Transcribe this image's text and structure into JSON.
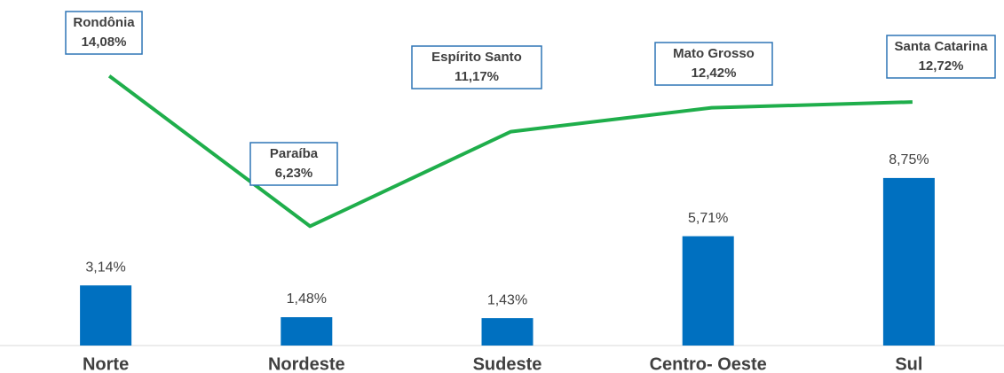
{
  "chart_data": {
    "type": "bar-line",
    "categories": [
      "Norte",
      "Nordeste",
      "Sudeste",
      "Centro- Oeste",
      "Sul"
    ],
    "ylim": [
      0,
      18
    ],
    "series": [
      {
        "type": "bar",
        "color": "#0070c0",
        "values": [
          3.14,
          1.48,
          1.43,
          5.71,
          8.75
        ],
        "value_labels": [
          "3,14%",
          "1,48%",
          "1,43%",
          "5,71%",
          "8,75%"
        ]
      },
      {
        "type": "line",
        "color": "#1fae4b",
        "values": [
          14.08,
          6.23,
          11.17,
          12.42,
          12.72
        ],
        "value_labels": [
          "14,08%",
          "6,23%",
          "11,17%",
          "12,42%",
          "12,72%"
        ],
        "point_labels": [
          "Rondônia",
          "Paraíba",
          "Espírito Santo",
          "Mato Grosso",
          "Santa Catarina"
        ]
      }
    ]
  }
}
